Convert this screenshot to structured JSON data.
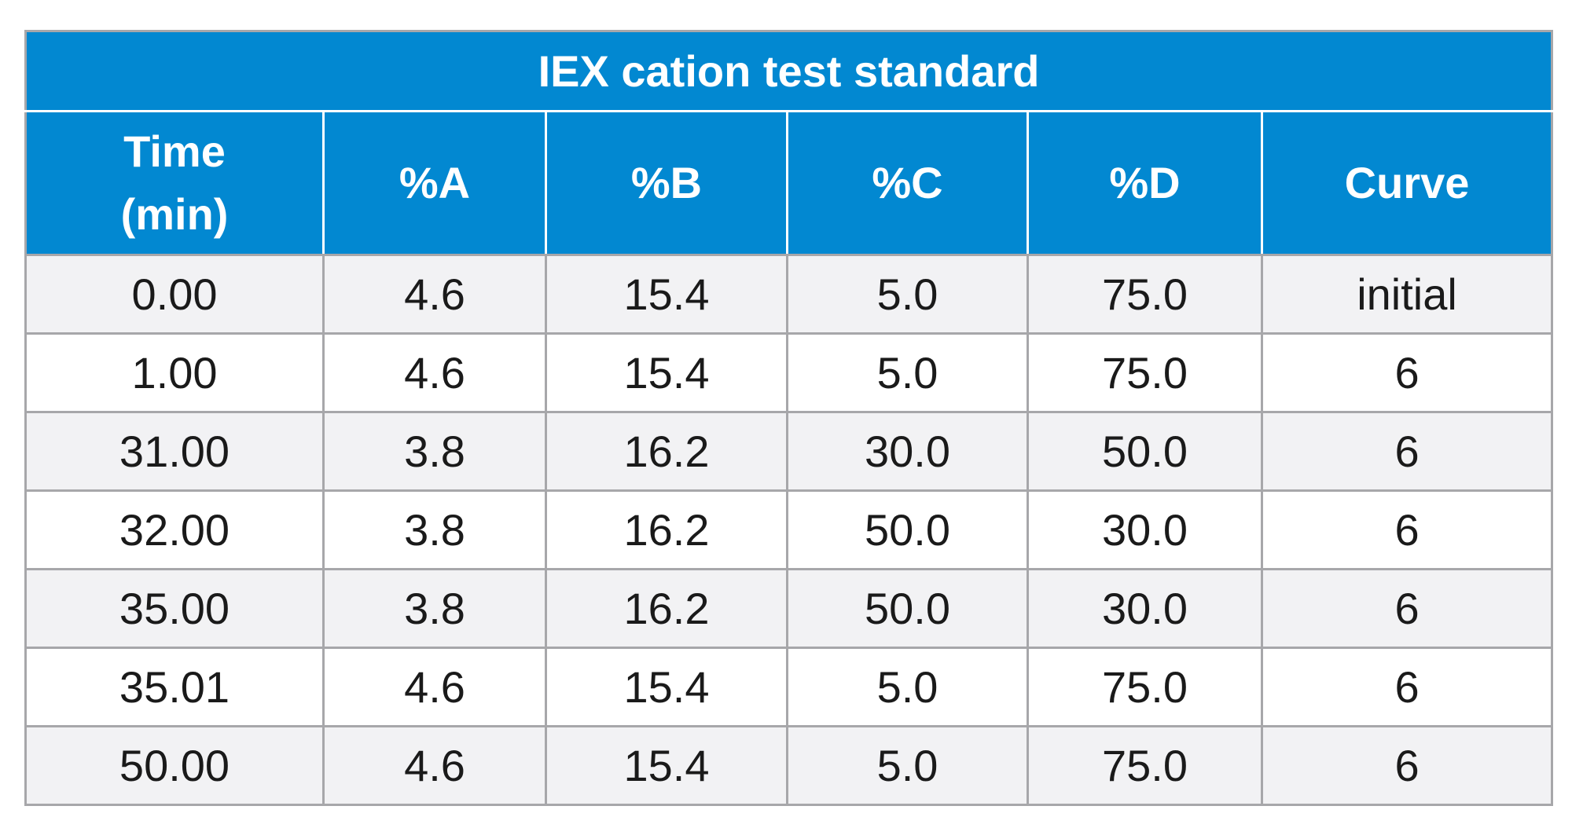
{
  "table": {
    "title": "IEX cation test standard",
    "columns": [
      "Time\n(min)",
      "%A",
      "%B",
      "%C",
      "%D",
      "Curve"
    ],
    "header_time_line1": "Time",
    "header_time_line2": "(min)",
    "rows": [
      [
        "0.00",
        "4.6",
        "15.4",
        "5.0",
        "75.0",
        "initial"
      ],
      [
        "1.00",
        "4.6",
        "15.4",
        "5.0",
        "75.0",
        "6"
      ],
      [
        "31.00",
        "3.8",
        "16.2",
        "30.0",
        "50.0",
        "6"
      ],
      [
        "32.00",
        "3.8",
        "16.2",
        "50.0",
        "30.0",
        "6"
      ],
      [
        "35.00",
        "3.8",
        "16.2",
        "50.0",
        "30.0",
        "6"
      ],
      [
        "35.01",
        "4.6",
        "15.4",
        "5.0",
        "75.0",
        "6"
      ],
      [
        "50.00",
        "4.6",
        "15.4",
        "5.0",
        "75.0",
        "6"
      ]
    ]
  },
  "colors": {
    "header_blue": "#0288d1",
    "row_stripe": "#f2f2f4",
    "grid_line": "#a7a7aa"
  }
}
